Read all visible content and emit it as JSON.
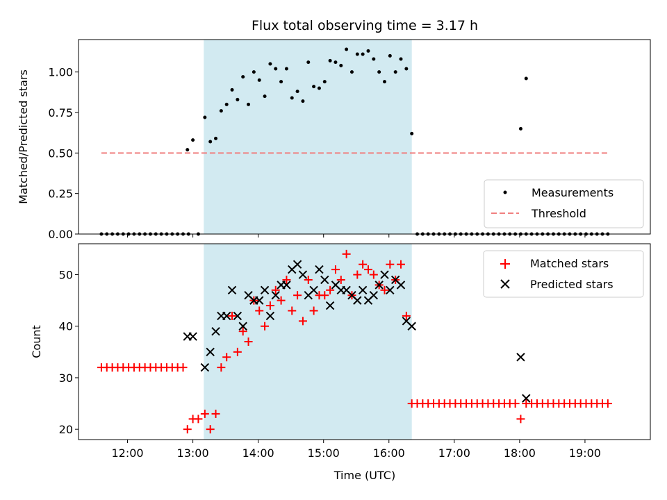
{
  "chart_data": {
    "type": "scatter",
    "title": "Flux total observing time = 3.17 h",
    "xlabel": "Time (UTC)",
    "xlim": [
      "11:15",
      "20:00"
    ],
    "xticks": [
      "12:00",
      "13:00",
      "14:00",
      "15:00",
      "16:00",
      "17:00",
      "18:00",
      "19:00"
    ],
    "shaded_interval": [
      "13:10",
      "16:21"
    ],
    "shade_color": "#add8e6",
    "panels": [
      {
        "ylabel": "Matched/Predicted stars",
        "ylim": [
          0,
          1.2
        ],
        "yticks": [
          "0.00",
          "0.25",
          "0.50",
          "0.75",
          "1.00"
        ],
        "legend_position": "lower-right",
        "series": [
          {
            "name": "Measurements",
            "marker": "dot",
            "color": "#000000",
            "points": [
              [
                "11:36",
                0
              ],
              [
                "11:41",
                0
              ],
              [
                "11:46",
                0
              ],
              [
                "11:51",
                0
              ],
              [
                "11:56",
                0
              ],
              [
                "12:01",
                0
              ],
              [
                "12:06",
                0
              ],
              [
                "12:11",
                0
              ],
              [
                "12:16",
                0
              ],
              [
                "12:21",
                0
              ],
              [
                "12:26",
                0
              ],
              [
                "12:31",
                0
              ],
              [
                "12:36",
                0
              ],
              [
                "12:41",
                0
              ],
              [
                "12:46",
                0
              ],
              [
                "12:51",
                0
              ],
              [
                "12:56",
                0
              ],
              [
                "12:55",
                0.52
              ],
              [
                "13:00",
                0.58
              ],
              [
                "13:05",
                0
              ],
              [
                "13:11",
                0.72
              ],
              [
                "13:16",
                0.57
              ],
              [
                "13:21",
                0.59
              ],
              [
                "13:26",
                0.76
              ],
              [
                "13:31",
                0.8
              ],
              [
                "13:36",
                0.89
              ],
              [
                "13:41",
                0.83
              ],
              [
                "13:46",
                0.97
              ],
              [
                "13:51",
                0.8
              ],
              [
                "13:56",
                1.0
              ],
              [
                "14:01",
                0.95
              ],
              [
                "14:06",
                0.85
              ],
              [
                "14:11",
                1.05
              ],
              [
                "14:16",
                1.02
              ],
              [
                "14:21",
                0.94
              ],
              [
                "14:26",
                1.02
              ],
              [
                "14:31",
                0.84
              ],
              [
                "14:36",
                0.88
              ],
              [
                "14:41",
                0.82
              ],
              [
                "14:46",
                1.06
              ],
              [
                "14:51",
                0.91
              ],
              [
                "14:56",
                0.9
              ],
              [
                "15:01",
                0.94
              ],
              [
                "15:06",
                1.07
              ],
              [
                "15:11",
                1.06
              ],
              [
                "15:16",
                1.04
              ],
              [
                "15:21",
                1.14
              ],
              [
                "15:26",
                1.0
              ],
              [
                "15:31",
                1.11
              ],
              [
                "15:36",
                1.11
              ],
              [
                "15:41",
                1.13
              ],
              [
                "15:46",
                1.08
              ],
              [
                "15:51",
                1.0
              ],
              [
                "15:56",
                0.94
              ],
              [
                "16:01",
                1.1
              ],
              [
                "16:06",
                1.0
              ],
              [
                "16:11",
                1.08
              ],
              [
                "16:16",
                1.02
              ],
              [
                "16:21",
                0.62
              ],
              [
                "16:26",
                0
              ],
              [
                "16:31",
                0
              ],
              [
                "16:36",
                0
              ],
              [
                "16:41",
                0
              ],
              [
                "16:46",
                0
              ],
              [
                "16:51",
                0
              ],
              [
                "16:56",
                0
              ],
              [
                "17:01",
                0
              ],
              [
                "17:06",
                0
              ],
              [
                "17:11",
                0
              ],
              [
                "17:16",
                0
              ],
              [
                "17:21",
                0
              ],
              [
                "17:26",
                0
              ],
              [
                "17:31",
                0
              ],
              [
                "17:36",
                0
              ],
              [
                "17:41",
                0
              ],
              [
                "17:46",
                0
              ],
              [
                "17:51",
                0
              ],
              [
                "17:56",
                0
              ],
              [
                "18:01",
                0
              ],
              [
                "18:06",
                0
              ],
              [
                "18:11",
                0
              ],
              [
                "18:16",
                0
              ],
              [
                "18:21",
                0
              ],
              [
                "18:26",
                0
              ],
              [
                "18:31",
                0
              ],
              [
                "18:36",
                0
              ],
              [
                "18:41",
                0
              ],
              [
                "18:46",
                0
              ],
              [
                "18:51",
                0
              ],
              [
                "18:56",
                0
              ],
              [
                "19:01",
                0
              ],
              [
                "19:06",
                0
              ],
              [
                "19:11",
                0
              ],
              [
                "19:16",
                0
              ],
              [
                "19:21",
                0
              ],
              [
                "18:01",
                0.65
              ],
              [
                "18:06",
                0.96
              ]
            ]
          },
          {
            "name": "Threshold",
            "marker": "dashed-line",
            "color": "#f08080",
            "points": [
              [
                "11:36",
                0.5
              ],
              [
                "19:21",
                0.5
              ]
            ]
          }
        ]
      },
      {
        "ylabel": "Count",
        "ylim": [
          18,
          56
        ],
        "yticks": [
          "20",
          "30",
          "40",
          "50"
        ],
        "legend_position": "upper-right",
        "series": [
          {
            "name": "Matched stars",
            "marker": "plus",
            "color": "#ff0000",
            "points": [
              [
                "11:36",
                32
              ],
              [
                "11:41",
                32
              ],
              [
                "11:46",
                32
              ],
              [
                "11:51",
                32
              ],
              [
                "11:56",
                32
              ],
              [
                "12:01",
                32
              ],
              [
                "12:06",
                32
              ],
              [
                "12:11",
                32
              ],
              [
                "12:16",
                32
              ],
              [
                "12:21",
                32
              ],
              [
                "12:26",
                32
              ],
              [
                "12:31",
                32
              ],
              [
                "12:36",
                32
              ],
              [
                "12:41",
                32
              ],
              [
                "12:46",
                32
              ],
              [
                "12:51",
                32
              ],
              [
                "12:55",
                20
              ],
              [
                "13:00",
                22
              ],
              [
                "13:05",
                22
              ],
              [
                "13:11",
                23
              ],
              [
                "13:16",
                20
              ],
              [
                "13:21",
                23
              ],
              [
                "13:26",
                32
              ],
              [
                "13:31",
                34
              ],
              [
                "13:36",
                42
              ],
              [
                "13:41",
                35
              ],
              [
                "13:46",
                39
              ],
              [
                "13:51",
                37
              ],
              [
                "13:56",
                45
              ],
              [
                "14:01",
                43
              ],
              [
                "14:06",
                40
              ],
              [
                "14:11",
                44
              ],
              [
                "14:16",
                47
              ],
              [
                "14:21",
                45
              ],
              [
                "14:26",
                49
              ],
              [
                "14:31",
                43
              ],
              [
                "14:36",
                46
              ],
              [
                "14:41",
                41
              ],
              [
                "14:46",
                49
              ],
              [
                "14:51",
                43
              ],
              [
                "14:56",
                46
              ],
              [
                "15:01",
                46
              ],
              [
                "15:06",
                47
              ],
              [
                "15:11",
                51
              ],
              [
                "15:16",
                49
              ],
              [
                "15:21",
                54
              ],
              [
                "15:26",
                46
              ],
              [
                "15:31",
                50
              ],
              [
                "15:36",
                52
              ],
              [
                "15:41",
                51
              ],
              [
                "15:46",
                50
              ],
              [
                "15:51",
                48
              ],
              [
                "15:56",
                47
              ],
              [
                "16:01",
                52
              ],
              [
                "16:06",
                49
              ],
              [
                "16:11",
                52
              ],
              [
                "16:16",
                42
              ],
              [
                "16:21",
                25
              ],
              [
                "16:26",
                25
              ],
              [
                "16:31",
                25
              ],
              [
                "16:36",
                25
              ],
              [
                "16:41",
                25
              ],
              [
                "16:46",
                25
              ],
              [
                "16:51",
                25
              ],
              [
                "16:56",
                25
              ],
              [
                "17:01",
                25
              ],
              [
                "17:06",
                25
              ],
              [
                "17:11",
                25
              ],
              [
                "17:16",
                25
              ],
              [
                "17:21",
                25
              ],
              [
                "17:26",
                25
              ],
              [
                "17:31",
                25
              ],
              [
                "17:36",
                25
              ],
              [
                "17:41",
                25
              ],
              [
                "17:46",
                25
              ],
              [
                "17:51",
                25
              ],
              [
                "17:56",
                25
              ],
              [
                "18:01",
                22
              ],
              [
                "18:06",
                25
              ],
              [
                "18:11",
                25
              ],
              [
                "18:16",
                25
              ],
              [
                "18:21",
                25
              ],
              [
                "18:26",
                25
              ],
              [
                "18:31",
                25
              ],
              [
                "18:36",
                25
              ],
              [
                "18:41",
                25
              ],
              [
                "18:46",
                25
              ],
              [
                "18:51",
                25
              ],
              [
                "18:56",
                25
              ],
              [
                "19:01",
                25
              ],
              [
                "19:06",
                25
              ],
              [
                "19:11",
                25
              ],
              [
                "19:16",
                25
              ],
              [
                "19:21",
                25
              ]
            ]
          },
          {
            "name": "Predicted stars",
            "marker": "x",
            "color": "#000000",
            "points": [
              [
                "12:55",
                38
              ],
              [
                "13:00",
                38
              ],
              [
                "13:11",
                32
              ],
              [
                "13:16",
                35
              ],
              [
                "13:21",
                39
              ],
              [
                "13:26",
                42
              ],
              [
                "13:31",
                42
              ],
              [
                "13:36",
                47
              ],
              [
                "13:41",
                42
              ],
              [
                "13:46",
                40
              ],
              [
                "13:51",
                46
              ],
              [
                "13:56",
                45
              ],
              [
                "14:01",
                45
              ],
              [
                "14:06",
                47
              ],
              [
                "14:11",
                42
              ],
              [
                "14:16",
                46
              ],
              [
                "14:21",
                48
              ],
              [
                "14:26",
                48
              ],
              [
                "14:31",
                51
              ],
              [
                "14:36",
                52
              ],
              [
                "14:41",
                50
              ],
              [
                "14:46",
                46
              ],
              [
                "14:51",
                47
              ],
              [
                "14:56",
                51
              ],
              [
                "15:01",
                49
              ],
              [
                "15:06",
                44
              ],
              [
                "15:11",
                48
              ],
              [
                "15:16",
                47
              ],
              [
                "15:21",
                47
              ],
              [
                "15:26",
                46
              ],
              [
                "15:31",
                45
              ],
              [
                "15:36",
                47
              ],
              [
                "15:41",
                45
              ],
              [
                "15:46",
                46
              ],
              [
                "15:51",
                48
              ],
              [
                "15:56",
                50
              ],
              [
                "16:01",
                47
              ],
              [
                "16:06",
                49
              ],
              [
                "16:11",
                48
              ],
              [
                "16:16",
                41
              ],
              [
                "16:21",
                40
              ],
              [
                "18:01",
                34
              ],
              [
                "18:06",
                26
              ]
            ]
          }
        ]
      }
    ]
  }
}
